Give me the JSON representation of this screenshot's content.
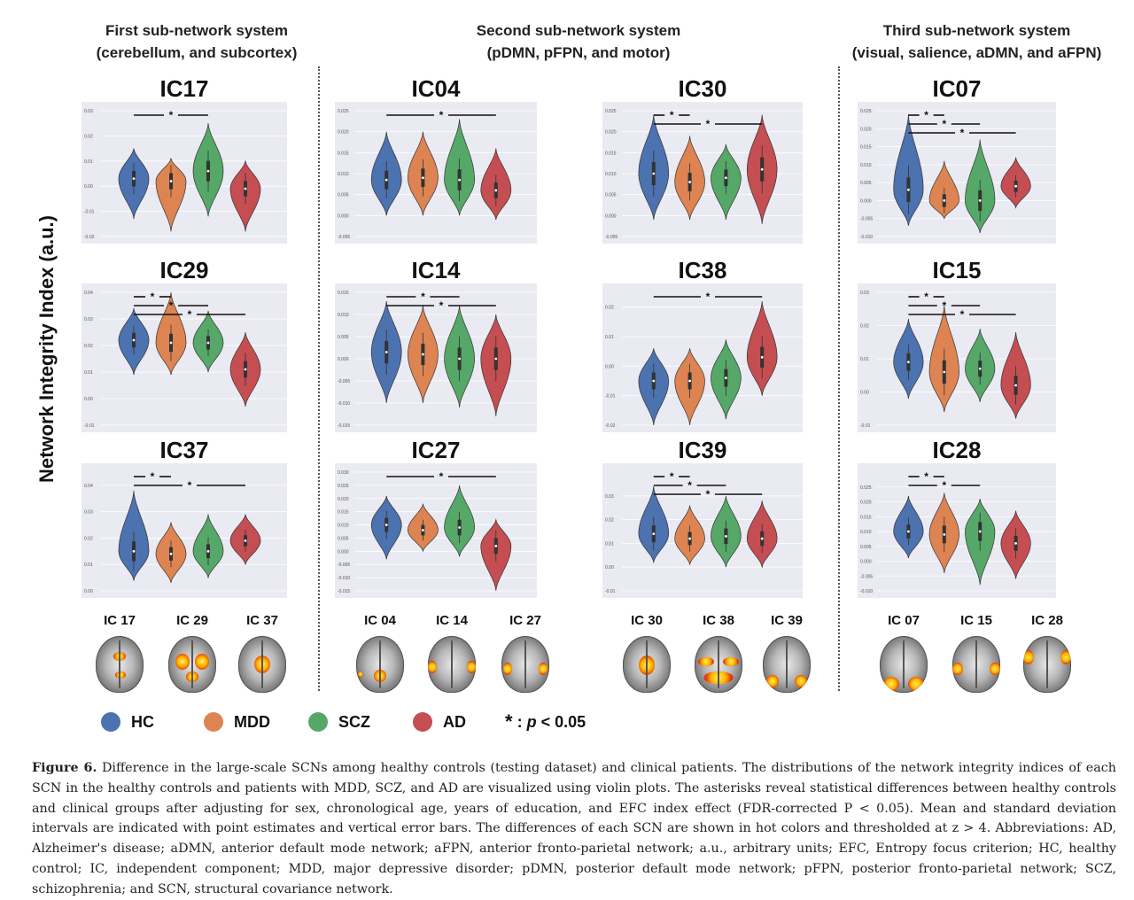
{
  "groups": [
    {
      "title1": "First sub-network system",
      "title2": "(cerebellum, and subcortex)"
    },
    {
      "title1": "Second sub-network system",
      "title2": "(pDMN, pFPN, and motor)"
    },
    {
      "title1": "Third sub-network system",
      "title2": "(visual, salience, aDMN, and aFPN)"
    }
  ],
  "ylabel": "Network Integrity Index (a.u.)",
  "colors": {
    "HC": "#4c72b0",
    "MDD": "#dd8452",
    "SCZ": "#55a868",
    "AD": "#c44e52",
    "panel_bg": "#eaeaf2"
  },
  "legend": {
    "items": [
      {
        "label": "HC",
        "color": "#4c72b0"
      },
      {
        "label": "MDD",
        "color": "#dd8452"
      },
      {
        "label": "SCZ",
        "color": "#55a868"
      },
      {
        "label": "AD",
        "color": "#c44e52"
      }
    ],
    "sig_star": "*",
    "sig_colon": " : ",
    "sig_p": "p",
    "sig_rest": " < 0.05"
  },
  "brains": [
    {
      "label": "IC 17",
      "icon": "brain-axial-cerebellum"
    },
    {
      "label": "IC 29",
      "icon": "brain-axial-subcortex"
    },
    {
      "label": "IC 37",
      "icon": "brain-axial-subcortex"
    },
    {
      "label": "IC 04",
      "icon": "brain-axial-pdmn"
    },
    {
      "label": "IC 14",
      "icon": "brain-axial-pfpn"
    },
    {
      "label": "IC 27",
      "icon": "brain-axial-motor"
    },
    {
      "label": "IC 30",
      "icon": "brain-axial-motor"
    },
    {
      "label": "IC 38",
      "icon": "brain-axial-motor"
    },
    {
      "label": "IC 39",
      "icon": "brain-axial-visual"
    },
    {
      "label": "IC 07",
      "icon": "brain-axial-visual"
    },
    {
      "label": "IC 15",
      "icon": "brain-axial-salience"
    },
    {
      "label": "IC 28",
      "icon": "brain-axial-afpn"
    }
  ],
  "caption": {
    "lead": "Figure 6.",
    "text": " Difference in the large-scale SCNs among healthy controls (testing dataset) and clinical patients. The distributions of the network integrity indices of each SCN in the healthy controls and patients with MDD, SCZ, and AD are visualized using violin plots. The asterisks reveal statistical differences between healthy controls and clinical groups after adjusting for sex, chronological age, years of education, and EFC index effect (FDR-corrected P < 0.05). Mean and standard deviation intervals are indicated with point estimates and vertical error bars. The differences of each SCN are shown in hot colors and thresholded at z > 4. Abbreviations: AD, Alzheimer's disease; aDMN, anterior default mode network; aFPN, anterior fronto-parietal network; a.u., arbitrary units; EFC, Entropy focus criterion; HC, healthy control; IC, independent component; MDD, major depressive disorder; pDMN, posterior default mode network; pFPN, posterior fronto-parietal network; SCZ, schizophrenia; and SCN, structural covariance network."
  },
  "chart_data": [
    {
      "type": "violin",
      "title": "IC17",
      "categories": [
        "HC",
        "MDD",
        "SCZ",
        "AD"
      ],
      "ylim": [
        -0.02,
        0.03
      ],
      "yticks": [
        "0.03",
        "0.02",
        "0.01",
        "0.00",
        "-0.01",
        "-0.02"
      ],
      "medians": [
        0.003,
        0.002,
        0.006,
        -0.001
      ],
      "ranges": [
        [
          -0.013,
          0.015
        ],
        [
          -0.018,
          0.011
        ],
        [
          -0.012,
          0.025
        ],
        [
          -0.018,
          0.01
        ]
      ],
      "sig": [
        {
          "from": "HC",
          "to": "SCZ",
          "label": "*"
        }
      ]
    },
    {
      "type": "violin",
      "title": "IC04",
      "categories": [
        "HC",
        "MDD",
        "SCZ",
        "AD"
      ],
      "ylim": [
        -0.005,
        0.025
      ],
      "yticks": [
        "0.025",
        "0.020",
        "0.015",
        "0.010",
        "0.005",
        "0.000",
        "-0.005"
      ],
      "medians": [
        0.0085,
        0.009,
        0.0085,
        0.006
      ],
      "ranges": [
        [
          0.0,
          0.02
        ],
        [
          0.0,
          0.02
        ],
        [
          0.0,
          0.023
        ],
        [
          -0.001,
          0.016
        ]
      ],
      "sig": [
        {
          "from": "HC",
          "to": "AD",
          "label": "*"
        }
      ]
    },
    {
      "type": "violin",
      "title": "IC30",
      "categories": [
        "HC",
        "MDD",
        "SCZ",
        "AD"
      ],
      "ylim": [
        -0.005,
        0.025
      ],
      "yticks": [
        "0.025",
        "0.020",
        "0.015",
        "0.010",
        "0.005",
        "0.000",
        "-0.005"
      ],
      "medians": [
        0.01,
        0.008,
        0.009,
        0.011
      ],
      "ranges": [
        [
          -0.001,
          0.024
        ],
        [
          -0.001,
          0.019
        ],
        [
          -0.001,
          0.017
        ],
        [
          -0.002,
          0.024
        ]
      ],
      "sig": [
        {
          "from": "HC",
          "to": "MDD",
          "label": "*"
        },
        {
          "from": "HC",
          "to": "AD",
          "label": "*"
        }
      ]
    },
    {
      "type": "violin",
      "title": "IC07",
      "categories": [
        "HC",
        "MDD",
        "SCZ",
        "AD"
      ],
      "ylim": [
        -0.01,
        0.025
      ],
      "yticks": [
        "0.025",
        "0.020",
        "0.015",
        "0.010",
        "0.005",
        "0.000",
        "-0.005",
        "-0.010"
      ],
      "medians": [
        0.003,
        0.0,
        0.0,
        0.004
      ],
      "ranges": [
        [
          -0.007,
          0.024
        ],
        [
          -0.005,
          0.011
        ],
        [
          -0.009,
          0.017
        ],
        [
          -0.002,
          0.012
        ]
      ],
      "sig": [
        {
          "from": "HC",
          "to": "MDD",
          "label": "*"
        },
        {
          "from": "HC",
          "to": "SCZ",
          "label": "*"
        },
        {
          "from": "HC",
          "to": "AD",
          "label": "*"
        }
      ]
    },
    {
      "type": "violin",
      "title": "IC29",
      "categories": [
        "HC",
        "MDD",
        "SCZ",
        "AD"
      ],
      "ylim": [
        -0.01,
        0.04
      ],
      "yticks": [
        "0.04",
        "0.03",
        "0.02",
        "0.01",
        "0.00",
        "-0.01"
      ],
      "medians": [
        0.022,
        0.021,
        0.021,
        0.011
      ],
      "ranges": [
        [
          0.009,
          0.034
        ],
        [
          0.009,
          0.04
        ],
        [
          0.01,
          0.033
        ],
        [
          -0.003,
          0.025
        ]
      ],
      "sig": [
        {
          "from": "HC",
          "to": "MDD",
          "label": "*"
        },
        {
          "from": "HC",
          "to": "SCZ",
          "label": "*"
        },
        {
          "from": "HC",
          "to": "AD",
          "label": "*"
        }
      ]
    },
    {
      "type": "violin",
      "title": "IC14",
      "categories": [
        "HC",
        "MDD",
        "SCZ",
        "AD"
      ],
      "ylim": [
        -0.015,
        0.015
      ],
      "yticks": [
        "0.015",
        "0.010",
        "0.005",
        "0.000",
        "-0.005",
        "-0.010",
        "-0.015"
      ],
      "medians": [
        0.0015,
        0.001,
        0.0,
        0.0
      ],
      "ranges": [
        [
          -0.01,
          0.013
        ],
        [
          -0.01,
          0.012
        ],
        [
          -0.011,
          0.012
        ],
        [
          -0.013,
          0.01
        ]
      ],
      "sig": [
        {
          "from": "HC",
          "to": "SCZ",
          "label": "*"
        },
        {
          "from": "HC",
          "to": "AD",
          "label": "*"
        }
      ]
    },
    {
      "type": "violin",
      "title": "IC38",
      "categories": [
        "HC",
        "MDD",
        "SCZ",
        "AD"
      ],
      "ylim": [
        -0.02,
        0.025
      ],
      "yticks": [
        "0.02",
        "0.01",
        "0.00",
        "-0.01",
        "-0.02"
      ],
      "medians": [
        -0.005,
        -0.005,
        -0.004,
        0.003
      ],
      "ranges": [
        [
          -0.02,
          0.006
        ],
        [
          -0.02,
          0.006
        ],
        [
          -0.018,
          0.009
        ],
        [
          -0.01,
          0.022
        ]
      ],
      "sig": [
        {
          "from": "HC",
          "to": "AD",
          "label": "*"
        }
      ]
    },
    {
      "type": "violin",
      "title": "IC15",
      "categories": [
        "HC",
        "MDD",
        "SCZ",
        "AD"
      ],
      "ylim": [
        -0.01,
        0.03
      ],
      "yticks": [
        "0.03",
        "0.02",
        "0.01",
        "0.00",
        "-0.01"
      ],
      "medians": [
        0.009,
        0.006,
        0.007,
        0.002
      ],
      "ranges": [
        [
          -0.002,
          0.022
        ],
        [
          -0.006,
          0.026
        ],
        [
          -0.003,
          0.019
        ],
        [
          -0.008,
          0.018
        ]
      ],
      "sig": [
        {
          "from": "HC",
          "to": "MDD",
          "label": "*"
        },
        {
          "from": "HC",
          "to": "SCZ",
          "label": "*"
        },
        {
          "from": "HC",
          "to": "AD",
          "label": "*"
        }
      ]
    },
    {
      "type": "violin",
      "title": "IC37",
      "categories": [
        "HC",
        "MDD",
        "SCZ",
        "AD"
      ],
      "ylim": [
        0.0,
        0.045
      ],
      "yticks": [
        "0.04",
        "0.03",
        "0.02",
        "0.01",
        "0.00"
      ],
      "medians": [
        0.015,
        0.014,
        0.015,
        0.019
      ],
      "ranges": [
        [
          0.004,
          0.038
        ],
        [
          0.003,
          0.026
        ],
        [
          0.005,
          0.029
        ],
        [
          0.01,
          0.029
        ]
      ],
      "sig": [
        {
          "from": "HC",
          "to": "MDD",
          "label": "*"
        },
        {
          "from": "HC",
          "to": "AD",
          "label": "*"
        }
      ]
    },
    {
      "type": "violin",
      "title": "IC27",
      "categories": [
        "HC",
        "MDD",
        "SCZ",
        "AD"
      ],
      "ylim": [
        -0.015,
        0.03
      ],
      "yticks": [
        "0.030",
        "0.025",
        "0.020",
        "0.015",
        "0.010",
        "0.005",
        "0.000",
        "-0.005",
        "-0.010",
        "-0.015"
      ],
      "medians": [
        0.01,
        0.008,
        0.009,
        0.002
      ],
      "ranges": [
        [
          -0.003,
          0.021
        ],
        [
          0.0,
          0.018
        ],
        [
          -0.002,
          0.025
        ],
        [
          -0.015,
          0.012
        ]
      ],
      "sig": [
        {
          "from": "HC",
          "to": "AD",
          "label": "*"
        }
      ]
    },
    {
      "type": "violin",
      "title": "IC39",
      "categories": [
        "HC",
        "MDD",
        "SCZ",
        "AD"
      ],
      "ylim": [
        -0.01,
        0.04
      ],
      "yticks": [
        "0.03",
        "0.02",
        "0.01",
        "0.00",
        "-0.01"
      ],
      "medians": [
        0.014,
        0.012,
        0.013,
        0.012
      ],
      "ranges": [
        [
          0.002,
          0.034
        ],
        [
          0.001,
          0.026
        ],
        [
          0.0,
          0.03
        ],
        [
          0.0,
          0.028
        ]
      ],
      "sig": [
        {
          "from": "HC",
          "to": "MDD",
          "label": "*"
        },
        {
          "from": "HC",
          "to": "SCZ",
          "label": "*"
        },
        {
          "from": "HC",
          "to": "AD",
          "label": "*"
        }
      ]
    },
    {
      "type": "violin",
      "title": "IC28",
      "categories": [
        "HC",
        "MDD",
        "SCZ",
        "AD"
      ],
      "ylim": [
        -0.01,
        0.03
      ],
      "yticks": [
        "0.025",
        "0.020",
        "0.015",
        "0.010",
        "0.005",
        "0.000",
        "-0.005",
        "-0.010"
      ],
      "medians": [
        0.01,
        0.009,
        0.01,
        0.006
      ],
      "ranges": [
        [
          0.001,
          0.022
        ],
        [
          -0.004,
          0.023
        ],
        [
          -0.008,
          0.021
        ],
        [
          -0.006,
          0.017
        ]
      ],
      "sig": [
        {
          "from": "HC",
          "to": "MDD",
          "label": "*"
        },
        {
          "from": "HC",
          "to": "SCZ",
          "label": "*"
        }
      ]
    }
  ]
}
